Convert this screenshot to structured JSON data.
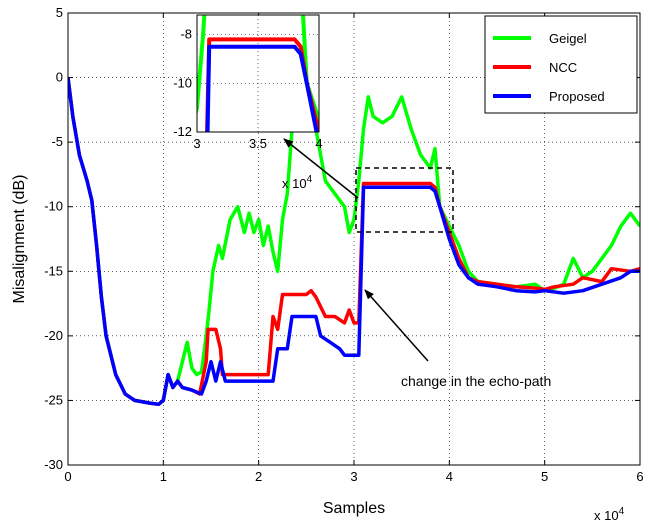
{
  "chart_data": {
    "type": "line",
    "xlabel": "Samples",
    "ylabel": "Misalignment (dB)",
    "x_multiplier": "x 10",
    "x_multiplier_exp": "4",
    "xlim": [
      0,
      6
    ],
    "ylim": [
      -30,
      5
    ],
    "xticks": [
      "0",
      "1",
      "2",
      "3",
      "4",
      "5",
      "6"
    ],
    "yticks": [
      "5",
      "0",
      "-5",
      "-10",
      "-15",
      "-20",
      "-25",
      "-30"
    ],
    "grid": true,
    "legend_position": "top-right",
    "series": [
      {
        "name": "Geigel",
        "color": "#00ff00",
        "points": [
          [
            0,
            0
          ],
          [
            0.05,
            -3
          ],
          [
            0.12,
            -6
          ],
          [
            0.2,
            -8
          ],
          [
            0.25,
            -9.5
          ],
          [
            0.3,
            -13
          ],
          [
            0.35,
            -17
          ],
          [
            0.4,
            -20
          ],
          [
            0.5,
            -23
          ],
          [
            0.6,
            -24.5
          ],
          [
            0.7,
            -25
          ],
          [
            0.85,
            -25.2
          ],
          [
            0.95,
            -25.3
          ],
          [
            1.0,
            -25
          ],
          [
            1.05,
            -23
          ],
          [
            1.1,
            -24
          ],
          [
            1.15,
            -23.5
          ],
          [
            1.2,
            -22
          ],
          [
            1.25,
            -20.5
          ],
          [
            1.3,
            -22.5
          ],
          [
            1.35,
            -23
          ],
          [
            1.4,
            -22.8
          ],
          [
            1.45,
            -20
          ],
          [
            1.48,
            -18
          ],
          [
            1.52,
            -15
          ],
          [
            1.58,
            -13
          ],
          [
            1.62,
            -14
          ],
          [
            1.7,
            -11
          ],
          [
            1.78,
            -10
          ],
          [
            1.85,
            -12
          ],
          [
            1.9,
            -10.5
          ],
          [
            1.95,
            -12
          ],
          [
            2.0,
            -11
          ],
          [
            2.05,
            -13
          ],
          [
            2.1,
            -11.5
          ],
          [
            2.15,
            -13.5
          ],
          [
            2.2,
            -15
          ],
          [
            2.25,
            -11
          ],
          [
            2.3,
            -9
          ],
          [
            2.35,
            -4
          ],
          [
            2.4,
            3
          ],
          [
            2.45,
            4.5
          ],
          [
            2.5,
            4
          ],
          [
            2.55,
            2
          ],
          [
            2.6,
            -4
          ],
          [
            2.7,
            -8
          ],
          [
            2.8,
            -9
          ],
          [
            2.9,
            -10
          ],
          [
            2.95,
            -12
          ],
          [
            3.0,
            -11
          ],
          [
            3.05,
            -8
          ],
          [
            3.1,
            -4
          ],
          [
            3.15,
            -1.5
          ],
          [
            3.2,
            -3
          ],
          [
            3.3,
            -3.5
          ],
          [
            3.4,
            -3
          ],
          [
            3.5,
            -1.5
          ],
          [
            3.6,
            -4
          ],
          [
            3.7,
            -6
          ],
          [
            3.8,
            -7
          ],
          [
            3.85,
            -5.5
          ],
          [
            3.9,
            -10
          ],
          [
            4.0,
            -11.5
          ],
          [
            4.1,
            -13
          ],
          [
            4.2,
            -15
          ],
          [
            4.3,
            -15.8
          ],
          [
            4.5,
            -16
          ],
          [
            4.7,
            -16.2
          ],
          [
            4.9,
            -16
          ],
          [
            5.0,
            -16.5
          ],
          [
            5.1,
            -16.3
          ],
          [
            5.2,
            -16
          ],
          [
            5.3,
            -14
          ],
          [
            5.4,
            -15.5
          ],
          [
            5.5,
            -15
          ],
          [
            5.6,
            -14
          ],
          [
            5.7,
            -13
          ],
          [
            5.8,
            -11.5
          ],
          [
            5.9,
            -10.5
          ],
          [
            6.0,
            -11.5
          ]
        ]
      },
      {
        "name": "NCC",
        "color": "#ff0000",
        "points": [
          [
            0,
            0
          ],
          [
            0.05,
            -3
          ],
          [
            0.12,
            -6
          ],
          [
            0.2,
            -8
          ],
          [
            0.25,
            -9.5
          ],
          [
            0.3,
            -13
          ],
          [
            0.35,
            -17
          ],
          [
            0.4,
            -20
          ],
          [
            0.5,
            -23
          ],
          [
            0.6,
            -24.5
          ],
          [
            0.7,
            -25
          ],
          [
            0.85,
            -25.2
          ],
          [
            0.95,
            -25.3
          ],
          [
            1.0,
            -25
          ],
          [
            1.05,
            -23
          ],
          [
            1.1,
            -24
          ],
          [
            1.15,
            -23.5
          ],
          [
            1.2,
            -24
          ],
          [
            1.3,
            -24.2
          ],
          [
            1.38,
            -24.5
          ],
          [
            1.45,
            -22
          ],
          [
            1.47,
            -19.5
          ],
          [
            1.55,
            -19.5
          ],
          [
            1.6,
            -21
          ],
          [
            1.62,
            -23
          ],
          [
            2.1,
            -23
          ],
          [
            2.15,
            -18.5
          ],
          [
            2.2,
            -19.5
          ],
          [
            2.25,
            -16.8
          ],
          [
            2.5,
            -16.8
          ],
          [
            2.55,
            -16.5
          ],
          [
            2.6,
            -17
          ],
          [
            2.7,
            -18.5
          ],
          [
            2.8,
            -18.5
          ],
          [
            2.9,
            -19
          ],
          [
            2.95,
            -18
          ],
          [
            3.0,
            -19
          ],
          [
            3.05,
            -19
          ],
          [
            3.1,
            -8.2
          ],
          [
            3.8,
            -8.2
          ],
          [
            3.85,
            -8.5
          ],
          [
            3.9,
            -10
          ],
          [
            4.0,
            -12
          ],
          [
            4.1,
            -14
          ],
          [
            4.2,
            -15.5
          ],
          [
            4.3,
            -15.8
          ],
          [
            4.5,
            -16
          ],
          [
            4.7,
            -16.2
          ],
          [
            4.9,
            -16.3
          ],
          [
            5.0,
            -16.4
          ],
          [
            5.1,
            -16.2
          ],
          [
            5.3,
            -16
          ],
          [
            5.4,
            -15.5
          ],
          [
            5.6,
            -15.8
          ],
          [
            5.7,
            -14.8
          ],
          [
            5.9,
            -15
          ],
          [
            6.0,
            -14.8
          ]
        ]
      },
      {
        "name": "Proposed",
        "color": "#0000ff",
        "points": [
          [
            0,
            0
          ],
          [
            0.05,
            -3
          ],
          [
            0.12,
            -6
          ],
          [
            0.2,
            -8
          ],
          [
            0.25,
            -9.5
          ],
          [
            0.3,
            -13
          ],
          [
            0.35,
            -17
          ],
          [
            0.4,
            -20
          ],
          [
            0.5,
            -23
          ],
          [
            0.6,
            -24.5
          ],
          [
            0.7,
            -25
          ],
          [
            0.85,
            -25.2
          ],
          [
            0.95,
            -25.3
          ],
          [
            1.0,
            -25
          ],
          [
            1.05,
            -23
          ],
          [
            1.1,
            -24
          ],
          [
            1.15,
            -23.5
          ],
          [
            1.2,
            -24
          ],
          [
            1.3,
            -24.2
          ],
          [
            1.4,
            -24.5
          ],
          [
            1.45,
            -23.5
          ],
          [
            1.5,
            -22
          ],
          [
            1.55,
            -23.5
          ],
          [
            1.6,
            -22
          ],
          [
            1.65,
            -23.5
          ],
          [
            2.15,
            -23.5
          ],
          [
            2.2,
            -21
          ],
          [
            2.3,
            -21
          ],
          [
            2.35,
            -18.5
          ],
          [
            2.6,
            -18.5
          ],
          [
            2.65,
            -20
          ],
          [
            2.75,
            -20.5
          ],
          [
            2.85,
            -21
          ],
          [
            2.9,
            -21.5
          ],
          [
            3.05,
            -21.5
          ],
          [
            3.1,
            -8.5
          ],
          [
            3.8,
            -8.5
          ],
          [
            3.85,
            -8.8
          ],
          [
            3.9,
            -10
          ],
          [
            4.0,
            -12.5
          ],
          [
            4.1,
            -14.5
          ],
          [
            4.2,
            -15.5
          ],
          [
            4.3,
            -16
          ],
          [
            4.5,
            -16.2
          ],
          [
            4.7,
            -16.5
          ],
          [
            4.9,
            -16.6
          ],
          [
            5.0,
            -16.5
          ],
          [
            5.2,
            -16.7
          ],
          [
            5.4,
            -16.5
          ],
          [
            5.6,
            -16
          ],
          [
            5.8,
            -15.5
          ],
          [
            5.9,
            -15
          ],
          [
            6.0,
            -15
          ]
        ]
      }
    ],
    "inset": {
      "xlim": [
        3,
        4
      ],
      "ylim": [
        -12,
        -7.2
      ],
      "xticks": [
        "3",
        "3.5",
        "4"
      ],
      "yticks": [
        "-8",
        "-10",
        "-12"
      ],
      "x_multiplier": "x 10",
      "x_multiplier_exp": "4"
    },
    "annotations": [
      {
        "text": "change in the echo-path"
      }
    ]
  }
}
